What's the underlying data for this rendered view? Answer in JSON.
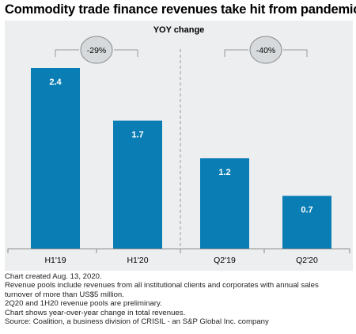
{
  "title": "Commodity trade finance revenues take hit from pandemic",
  "chart_data": {
    "type": "bar",
    "subtitle": "YOY change",
    "categories": [
      "H1'19",
      "H1'20",
      "Q2'19",
      "Q2'20"
    ],
    "values": [
      2.4,
      1.7,
      1.2,
      0.7
    ],
    "value_labels": [
      "2.4",
      "1.7",
      "1.2",
      "0.7"
    ],
    "ylim": [
      0,
      2.4
    ],
    "bar_color": "#0a7db4",
    "grid": false,
    "comparisons": [
      {
        "label": "-29%",
        "from": 0,
        "to": 1
      },
      {
        "label": "-40%",
        "from": 2,
        "to": 3
      }
    ]
  },
  "notes": [
    "Chart created Aug. 13, 2020.",
    "Revenue pools include revenues from all institutional clients and corporates with annual sales",
    "turnover of more than US$5 million.",
    "2Q20 and 1H20 revenue pools are preliminary.",
    "Chart shows year-over-year change in total revenues.",
    "Source: Coalition, a business division of CRISIL - an S&P Global Inc. company"
  ]
}
